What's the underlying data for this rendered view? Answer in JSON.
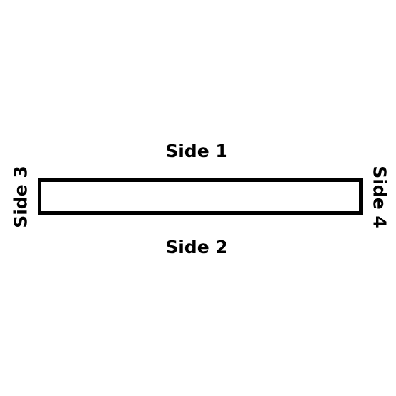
{
  "diagram": {
    "shape": "rectangle",
    "stroke_color": "#000000",
    "fill_color": "#ffffff",
    "labels": {
      "top": "Side 1",
      "bottom": "Side 2",
      "left": "Side 3",
      "right": "Side 4"
    }
  }
}
